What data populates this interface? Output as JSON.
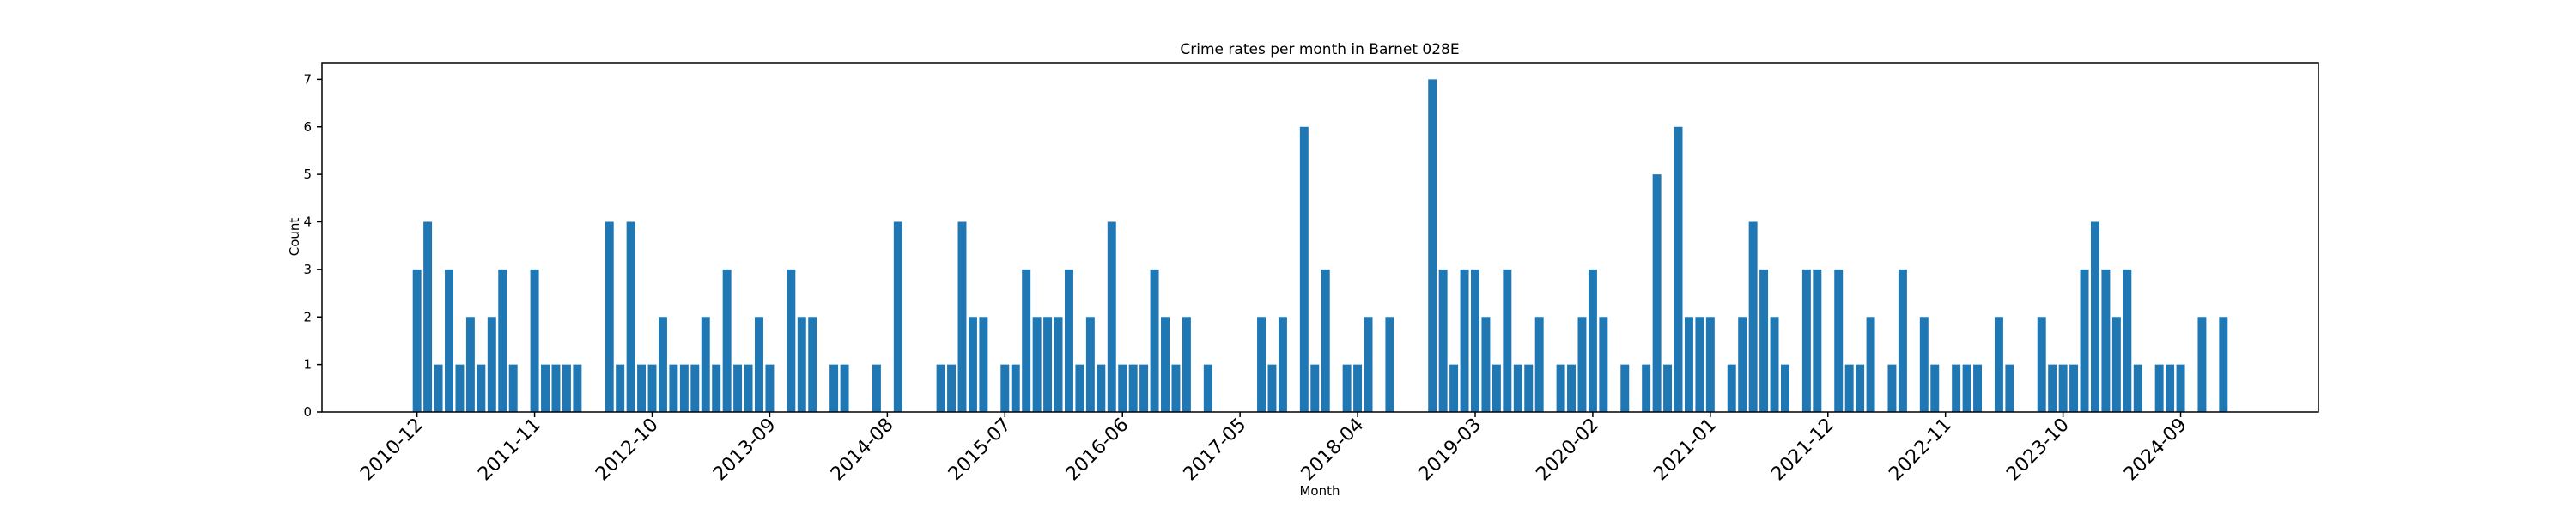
{
  "chart_data": {
    "type": "bar",
    "title": "Crime rates per month in Barnet 028E",
    "xlabel": "Month",
    "ylabel": "Count",
    "color": "#1f77b4",
    "categories": [
      "2010-12",
      null,
      null,
      null,
      null,
      null,
      null,
      null,
      null,
      null,
      null,
      "2011-11",
      null,
      null,
      null,
      null,
      null,
      null,
      null,
      null,
      null,
      null,
      "2012-10",
      null,
      null,
      null,
      null,
      null,
      null,
      null,
      null,
      null,
      null,
      "2013-09",
      null,
      null,
      null,
      null,
      null,
      null,
      null,
      null,
      null,
      null,
      "2014-08",
      null,
      null,
      null,
      null,
      null,
      null,
      null,
      null,
      null,
      null,
      "2015-07",
      null,
      null,
      null,
      null,
      null,
      null,
      null,
      null,
      null,
      null,
      "2016-06",
      null,
      null,
      null,
      null,
      null,
      null,
      null,
      null,
      null,
      null,
      "2017-05",
      null,
      null,
      null,
      null,
      null,
      null,
      null,
      null,
      null,
      null,
      "2018-04",
      null,
      null,
      null,
      null,
      null,
      null,
      null,
      null,
      null,
      null,
      "2019-03",
      null,
      null,
      null,
      null,
      null,
      null,
      null,
      null,
      null,
      null,
      "2020-02",
      null,
      null,
      null,
      null,
      null,
      null,
      null,
      null,
      null,
      null,
      "2021-01",
      null,
      null,
      null,
      null,
      null,
      null,
      null,
      null,
      null,
      null,
      "2021-12",
      null,
      null,
      null,
      null,
      null,
      null,
      null,
      null,
      null,
      null,
      "2022-11",
      null,
      null,
      null,
      null,
      null,
      null,
      null,
      null,
      null,
      null,
      "2023-10",
      null,
      null,
      null,
      null,
      null,
      null,
      null,
      null,
      null,
      null,
      "2024-09",
      null,
      null,
      null,
      null
    ],
    "values": [
      3,
      4,
      1,
      3,
      1,
      2,
      1,
      2,
      3,
      1,
      0,
      3,
      1,
      1,
      1,
      1,
      0,
      0,
      4,
      1,
      4,
      1,
      1,
      2,
      1,
      1,
      1,
      2,
      1,
      3,
      1,
      1,
      2,
      1,
      0,
      3,
      2,
      2,
      0,
      1,
      1,
      0,
      0,
      1,
      0,
      4,
      0,
      0,
      0,
      1,
      1,
      4,
      2,
      2,
      0,
      1,
      1,
      3,
      2,
      2,
      2,
      3,
      1,
      2,
      1,
      4,
      1,
      1,
      1,
      3,
      2,
      1,
      2,
      0,
      1,
      0,
      0,
      0,
      0,
      2,
      1,
      2,
      0,
      6,
      1,
      3,
      0,
      1,
      1,
      2,
      0,
      2,
      0,
      0,
      0,
      7,
      3,
      1,
      3,
      3,
      2,
      1,
      3,
      1,
      1,
      2,
      0,
      1,
      1,
      2,
      3,
      2,
      0,
      1,
      0,
      1,
      5,
      1,
      6,
      2,
      2,
      2,
      0,
      1,
      2,
      4,
      3,
      2,
      1,
      0,
      3,
      3,
      0,
      3,
      1,
      1,
      2,
      0,
      1,
      3,
      0,
      2,
      1,
      0,
      1,
      1,
      1,
      0,
      2,
      1,
      0,
      0,
      2,
      1,
      1,
      1,
      3,
      4,
      3,
      2,
      3,
      1,
      0,
      1,
      1,
      1,
      0,
      2,
      0,
      2
    ],
    "ylim": [
      0,
      7.35
    ],
    "yticks": [
      0,
      1,
      2,
      3,
      4,
      5,
      6,
      7
    ]
  }
}
